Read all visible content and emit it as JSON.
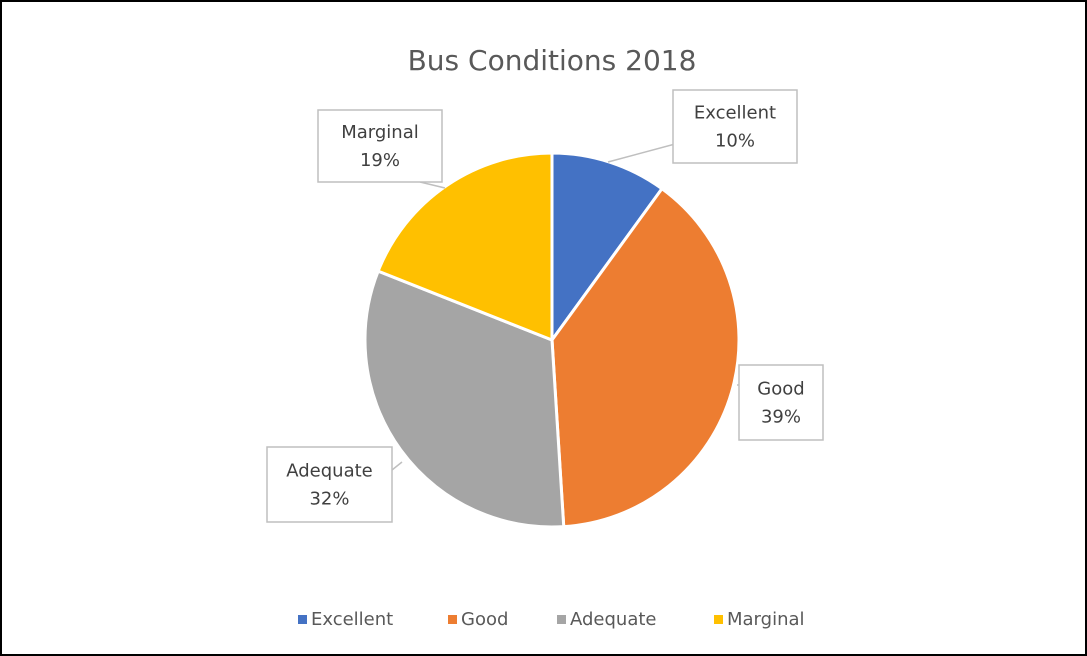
{
  "chart_data": {
    "type": "pie",
    "title": "Bus Conditions 2018",
    "categories": [
      "Excellent",
      "Good",
      "Adequate",
      "Marginal"
    ],
    "values": [
      10,
      39,
      32,
      19
    ],
    "value_labels": [
      "10%",
      "39%",
      "32%",
      "19%"
    ],
    "colors": [
      "#4472c4",
      "#ed7d31",
      "#a5a5a5",
      "#ffc000"
    ],
    "legend": "bottom"
  }
}
